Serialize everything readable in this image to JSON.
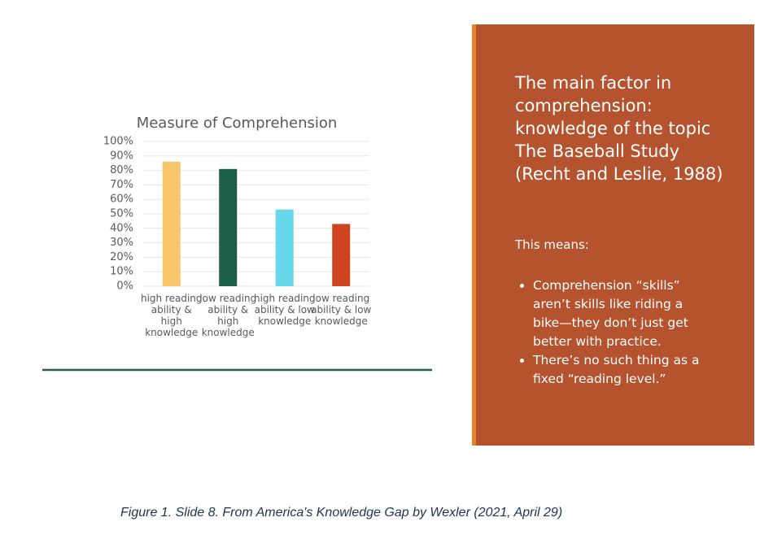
{
  "chart_data": {
    "type": "bar",
    "title": "Measure of Comprehension",
    "categories": [
      "high reading ability & high knowledge",
      "low reading ability & high knowledge",
      "high reading ability & low knowledge",
      "low reading ability & low knowledge"
    ],
    "values": [
      86,
      81,
      53,
      43
    ],
    "colors": [
      "#f8c56b",
      "#1d5e46",
      "#67d8ea",
      "#cf4420"
    ],
    "ylim": [
      0,
      100
    ],
    "yticks": [
      {
        "value": 0,
        "label": "0%"
      },
      {
        "value": 10,
        "label": "10%"
      },
      {
        "value": 20,
        "label": "20%"
      },
      {
        "value": 30,
        "label": "30%"
      },
      {
        "value": 40,
        "label": "40%"
      },
      {
        "value": 50,
        "label": "50%"
      },
      {
        "value": 60,
        "label": "60%"
      },
      {
        "value": 70,
        "label": "70%"
      },
      {
        "value": 80,
        "label": "80%"
      },
      {
        "value": 90,
        "label": "90%"
      },
      {
        "value": 100,
        "label": "100%"
      }
    ],
    "grid": true
  },
  "panel": {
    "heading": [
      "The main factor in",
      "comprehension:",
      "knowledge of the topic",
      "The Baseball Study",
      "(Recht and Leslie, 1988)"
    ],
    "subheading": "This means:",
    "bullets": [
      "Comprehension “skills” aren’t skills like riding a bike—they don’t just get better with practice.",
      "There’s no such thing as a fixed “reading level.”"
    ]
  },
  "caption": "Figure 1. Slide 8. From America's Knowledge Gap by Wexler (2021, April 29)"
}
